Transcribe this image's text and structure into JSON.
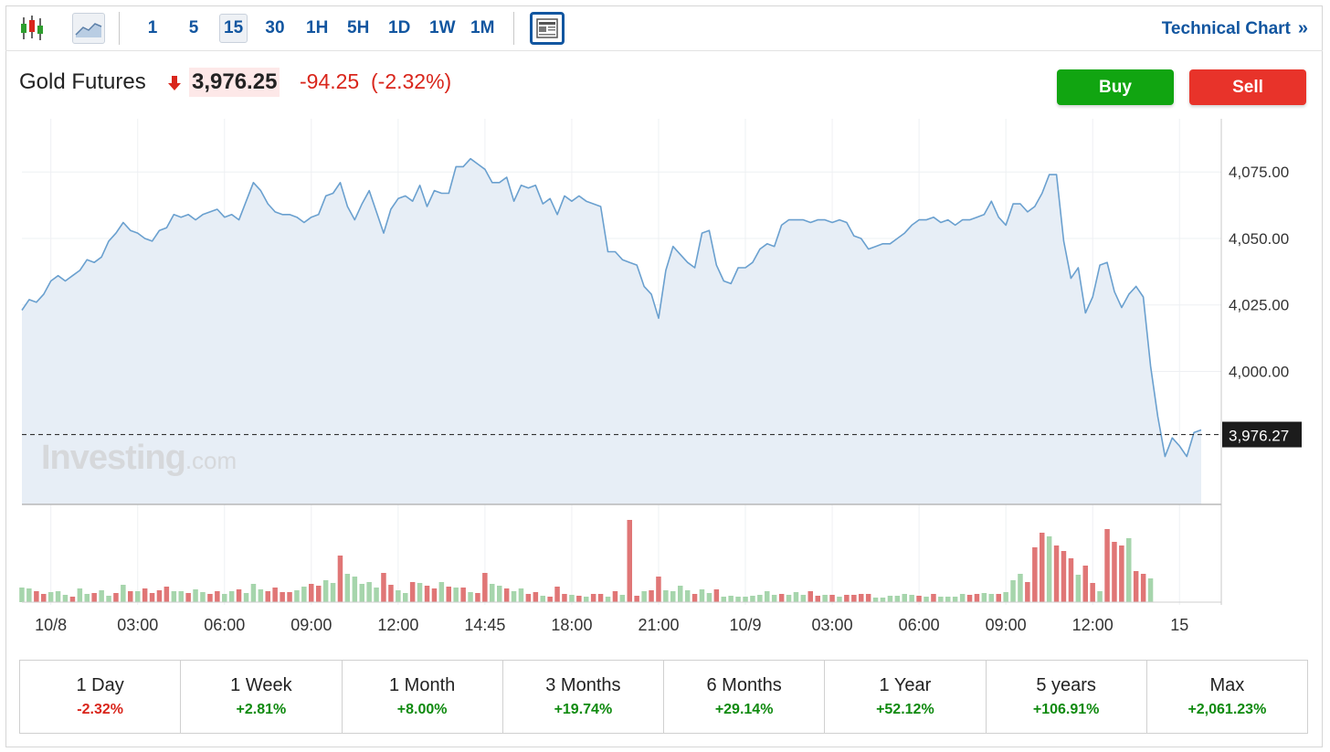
{
  "toolbar": {
    "intervals": [
      "1",
      "5",
      "15",
      "30",
      "1H",
      "5H",
      "1D",
      "1W",
      "1M"
    ],
    "active_interval": "15",
    "technical_chart_label": "Technical Chart",
    "technical_chart_chevron": "»"
  },
  "instrument": {
    "name": "Gold Futures",
    "price": "3,976.25",
    "change": "-94.25",
    "change_pct": "(-2.32%)",
    "direction": "down"
  },
  "actions": {
    "buy_label": "Buy",
    "sell_label": "Sell"
  },
  "colors": {
    "up": "#11a511",
    "down": "#e8332a",
    "link": "#1256a0",
    "line": "#6aa0cf",
    "area": "#e7eef6",
    "vol_up": "#a6d5ac",
    "vol_down": "#e07676"
  },
  "watermark": {
    "brand": "Investing",
    "suffix": ".com"
  },
  "chart_data": {
    "type": "area",
    "ylim": [
      3950,
      4095
    ],
    "y_ticks": [
      4000,
      4025,
      4050,
      4075
    ],
    "y_tick_labels": [
      "4,000.00",
      "4,025.00",
      "4,050.00",
      "4,075.00"
    ],
    "last_price_label": "3,976.27",
    "last_price": 3976.27,
    "x_labels": [
      "10/8",
      "03:00",
      "06:00",
      "09:00",
      "12:00",
      "14:45",
      "18:00",
      "21:00",
      "10/9",
      "03:00",
      "06:00",
      "09:00",
      "12:00",
      "15"
    ],
    "x_label_index": [
      4,
      16,
      28,
      40,
      52,
      64,
      76,
      88,
      100,
      112,
      124,
      136,
      148,
      160
    ],
    "price": [
      4023,
      4027,
      4026,
      4029,
      4034,
      4036,
      4034,
      4036,
      4038,
      4042,
      4041,
      4043,
      4049,
      4052,
      4056,
      4053,
      4052,
      4050,
      4049,
      4053,
      4054,
      4059,
      4058,
      4059,
      4057,
      4059,
      4060,
      4061,
      4058,
      4059,
      4057,
      4064,
      4071,
      4068,
      4063,
      4060,
      4059,
      4059,
      4058,
      4056,
      4058,
      4059,
      4066,
      4067,
      4071,
      4062,
      4057,
      4063,
      4068,
      4060,
      4052,
      4061,
      4065,
      4066,
      4064,
      4070,
      4062,
      4068,
      4067,
      4067,
      4077,
      4077,
      4080,
      4078,
      4076,
      4071,
      4071,
      4073,
      4064,
      4070,
      4069,
      4070,
      4063,
      4065,
      4059,
      4066,
      4064,
      4066,
      4064,
      4063,
      4062,
      4045,
      4045,
      4042,
      4041,
      4040,
      4032,
      4029,
      4020,
      4038,
      4047,
      4044,
      4041,
      4039,
      4052,
      4053,
      4040,
      4034,
      4033,
      4039,
      4039,
      4041,
      4046,
      4048,
      4047,
      4055,
      4057,
      4057,
      4057,
      4056,
      4057,
      4057,
      4056,
      4057,
      4056,
      4051,
      4050,
      4046,
      4047,
      4048,
      4048,
      4050,
      4052,
      4055,
      4057,
      4057,
      4058,
      4056,
      4057,
      4055,
      4057,
      4057,
      4058,
      4059,
      4064,
      4058,
      4055,
      4063,
      4063,
      4060,
      4062,
      4067,
      4074,
      4074,
      4049,
      4035,
      4039,
      4022,
      4028,
      4040,
      4041,
      4030,
      4024,
      4029,
      4032,
      4028,
      4002,
      3983,
      3968,
      3975,
      3972,
      3968,
      3977,
      3978
    ],
    "volume": [
      [
        16,
        1
      ],
      [
        15,
        1
      ],
      [
        12,
        0
      ],
      [
        9,
        0
      ],
      [
        11,
        1
      ],
      [
        12,
        1
      ],
      [
        8,
        1
      ],
      [
        6,
        0
      ],
      [
        15,
        1
      ],
      [
        9,
        1
      ],
      [
        10,
        0
      ],
      [
        13,
        1
      ],
      [
        7,
        1
      ],
      [
        10,
        0
      ],
      [
        19,
        1
      ],
      [
        12,
        0
      ],
      [
        12,
        1
      ],
      [
        15,
        0
      ],
      [
        10,
        0
      ],
      [
        13,
        0
      ],
      [
        17,
        0
      ],
      [
        12,
        1
      ],
      [
        12,
        1
      ],
      [
        10,
        0
      ],
      [
        14,
        1
      ],
      [
        11,
        1
      ],
      [
        9,
        0
      ],
      [
        12,
        0
      ],
      [
        9,
        1
      ],
      [
        12,
        1
      ],
      [
        14,
        0
      ],
      [
        10,
        1
      ],
      [
        20,
        1
      ],
      [
        14,
        1
      ],
      [
        12,
        0
      ],
      [
        16,
        0
      ],
      [
        11,
        0
      ],
      [
        11,
        0
      ],
      [
        13,
        1
      ],
      [
        17,
        1
      ],
      [
        20,
        0
      ],
      [
        18,
        0
      ],
      [
        24,
        1
      ],
      [
        21,
        1
      ],
      [
        51,
        0
      ],
      [
        31,
        1
      ],
      [
        28,
        1
      ],
      [
        20,
        1
      ],
      [
        22,
        1
      ],
      [
        16,
        1
      ],
      [
        32,
        0
      ],
      [
        19,
        0
      ],
      [
        13,
        1
      ],
      [
        10,
        1
      ],
      [
        22,
        0
      ],
      [
        21,
        1
      ],
      [
        18,
        0
      ],
      [
        15,
        0
      ],
      [
        22,
        1
      ],
      [
        17,
        0
      ],
      [
        16,
        1
      ],
      [
        16,
        0
      ],
      [
        11,
        1
      ],
      [
        10,
        0
      ],
      [
        32,
        0
      ],
      [
        20,
        1
      ],
      [
        18,
        1
      ],
      [
        15,
        0
      ],
      [
        12,
        1
      ],
      [
        15,
        1
      ],
      [
        9,
        0
      ],
      [
        11,
        0
      ],
      [
        7,
        1
      ],
      [
        6,
        0
      ],
      [
        17,
        0
      ],
      [
        9,
        0
      ],
      [
        8,
        1
      ],
      [
        7,
        0
      ],
      [
        6,
        1
      ],
      [
        9,
        0
      ],
      [
        9,
        0
      ],
      [
        6,
        1
      ],
      [
        12,
        0
      ],
      [
        8,
        1
      ],
      [
        90,
        0
      ],
      [
        7,
        0
      ],
      [
        12,
        1
      ],
      [
        13,
        0
      ],
      [
        28,
        0
      ],
      [
        13,
        1
      ],
      [
        12,
        1
      ],
      [
        18,
        1
      ],
      [
        13,
        1
      ],
      [
        9,
        0
      ],
      [
        14,
        1
      ],
      [
        10,
        1
      ],
      [
        14,
        0
      ],
      [
        6,
        1
      ],
      [
        7,
        1
      ],
      [
        6,
        1
      ],
      [
        6,
        1
      ],
      [
        7,
        1
      ],
      [
        8,
        1
      ],
      [
        12,
        1
      ],
      [
        8,
        1
      ],
      [
        9,
        0
      ],
      [
        8,
        1
      ],
      [
        11,
        1
      ],
      [
        8,
        1
      ],
      [
        12,
        0
      ],
      [
        7,
        0
      ],
      [
        8,
        1
      ],
      [
        8,
        0
      ],
      [
        6,
        1
      ],
      [
        8,
        0
      ],
      [
        8,
        0
      ],
      [
        9,
        0
      ],
      [
        9,
        0
      ],
      [
        5,
        1
      ],
      [
        5,
        1
      ],
      [
        7,
        1
      ],
      [
        7,
        1
      ],
      [
        9,
        1
      ],
      [
        8,
        1
      ],
      [
        7,
        0
      ],
      [
        6,
        1
      ],
      [
        9,
        0
      ],
      [
        6,
        1
      ],
      [
        6,
        1
      ],
      [
        6,
        1
      ],
      [
        9,
        1
      ],
      [
        8,
        0
      ],
      [
        9,
        0
      ],
      [
        10,
        1
      ],
      [
        9,
        1
      ],
      [
        9,
        0
      ],
      [
        11,
        1
      ],
      [
        24,
        1
      ],
      [
        31,
        1
      ],
      [
        22,
        0
      ],
      [
        60,
        0
      ],
      [
        76,
        0
      ],
      [
        72,
        1
      ],
      [
        62,
        0
      ],
      [
        56,
        0
      ],
      [
        48,
        0
      ],
      [
        30,
        1
      ],
      [
        40,
        0
      ],
      [
        21,
        0
      ],
      [
        12,
        1
      ],
      [
        80,
        0
      ],
      [
        66,
        0
      ],
      [
        62,
        0
      ],
      [
        70,
        1
      ],
      [
        34,
        0
      ],
      [
        31,
        0
      ],
      [
        26,
        1
      ]
    ]
  },
  "performance": [
    {
      "label": "1 Day",
      "value": "-2.32%",
      "dir": "down"
    },
    {
      "label": "1 Week",
      "value": "+2.81%",
      "dir": "up"
    },
    {
      "label": "1 Month",
      "value": "+8.00%",
      "dir": "up"
    },
    {
      "label": "3 Months",
      "value": "+19.74%",
      "dir": "up"
    },
    {
      "label": "6 Months",
      "value": "+29.14%",
      "dir": "up"
    },
    {
      "label": "1 Year",
      "value": "+52.12%",
      "dir": "up"
    },
    {
      "label": "5 years",
      "value": "+106.91%",
      "dir": "up"
    },
    {
      "label": "Max",
      "value": "+2,061.23%",
      "dir": "up"
    }
  ]
}
